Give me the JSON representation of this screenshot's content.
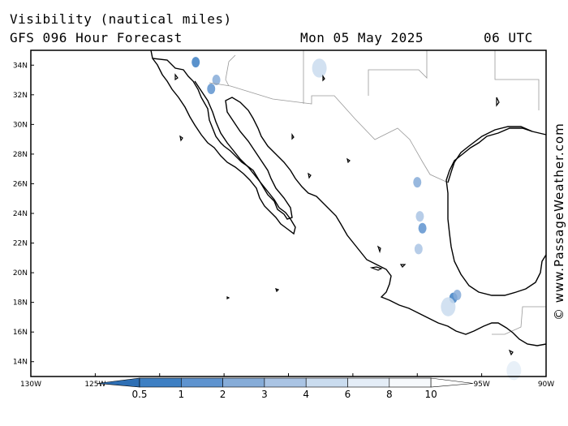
{
  "header": {
    "title": "Visibility (nautical miles)",
    "subtitle": "GFS 096 Hour Forecast",
    "date": "Mon 05 May 2025",
    "time": "06 UTC"
  },
  "credit": "© www.PassageWeather.com",
  "map": {
    "lon_range": [
      -130,
      -90
    ],
    "lat_range": [
      13,
      35
    ],
    "lat_ticks": [
      "14N",
      "16N",
      "18N",
      "20N",
      "22N",
      "24N",
      "26N",
      "28N",
      "30N",
      "32N",
      "34N"
    ],
    "lon_ticks": [
      "130W",
      "125W",
      "120W",
      "115W",
      "110W",
      "105W",
      "100W",
      "95W",
      "90W"
    ],
    "coastline_color": "#000000",
    "border_color": "#999999",
    "low_visibility_areas": [
      {
        "lon": -117.2,
        "lat": 34.2,
        "level": 1
      },
      {
        "lon": -116.0,
        "lat": 32.4,
        "level": 2
      },
      {
        "lon": -115.6,
        "lat": 33.0,
        "level": 3
      },
      {
        "lon": -107.6,
        "lat": 33.8,
        "level": 5
      },
      {
        "lon": -100.0,
        "lat": 26.1,
        "level": 3
      },
      {
        "lon": -99.8,
        "lat": 23.8,
        "level": 4
      },
      {
        "lon": -99.6,
        "lat": 23.0,
        "level": 2
      },
      {
        "lon": -99.9,
        "lat": 21.6,
        "level": 4
      },
      {
        "lon": -97.2,
        "lat": 18.3,
        "level": 1
      },
      {
        "lon": -96.9,
        "lat": 18.5,
        "level": 3
      },
      {
        "lon": -97.6,
        "lat": 17.7,
        "level": 5
      },
      {
        "lon": -92.5,
        "lat": 13.4,
        "level": 6
      }
    ]
  },
  "colorbar": {
    "labels": [
      "0.5",
      "1",
      "2",
      "3",
      "4",
      "6",
      "8",
      "10"
    ],
    "colors": [
      "#2e6fb4",
      "#3d7fc3",
      "#5e93cf",
      "#86acd8",
      "#aac4e4",
      "#cadcef",
      "#e4edf7",
      "#f6f9fc",
      "#ffffff"
    ]
  }
}
